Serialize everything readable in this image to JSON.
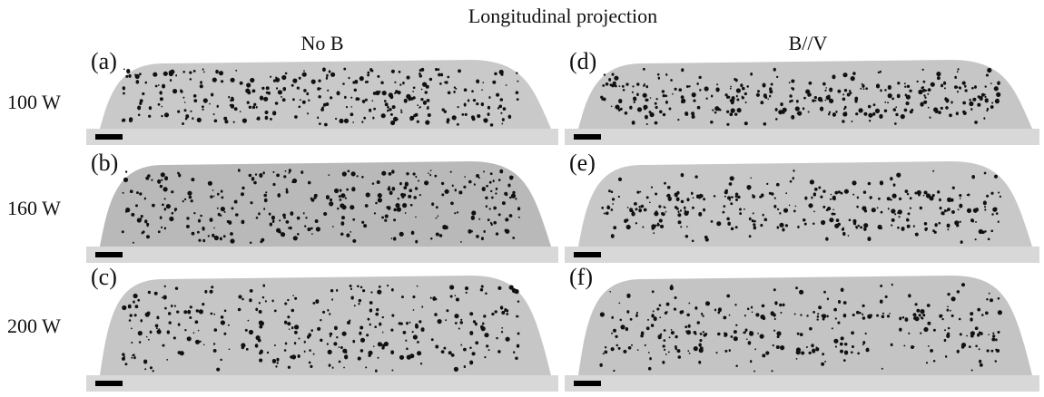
{
  "title": "Longitudinal projection",
  "columns": [
    "No B",
    "B//V"
  ],
  "rows": [
    "100 W",
    "160 W",
    "200 W"
  ],
  "panels": [
    [
      "(a)",
      "(d)"
    ],
    [
      "(b)",
      "(e)"
    ],
    [
      "(c)",
      "(f)"
    ]
  ]
}
